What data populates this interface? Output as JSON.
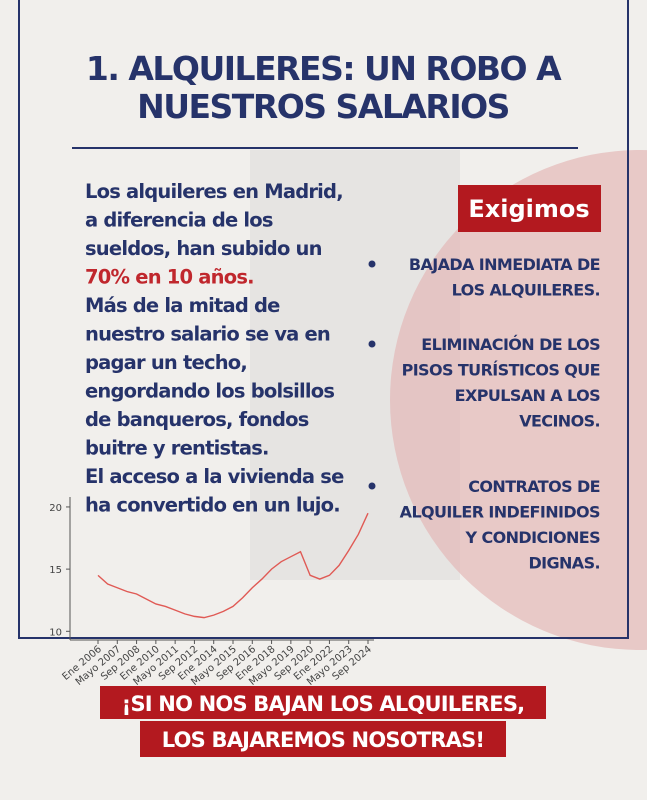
{
  "title": [
    "1. ALQUILERES: UN ROBO A",
    "NUESTROS SALARIOS"
  ],
  "body": [
    "Los alquileres en Madrid,",
    "a diferencia de los",
    "sueldos, han subido un",
    "70% en 10 años.",
    "Más de la mitad de",
    "nuestro salario se va en",
    "pagar un techo,",
    "engordando los bolsillos",
    "de banqueros, fondos",
    "buitre y rentistas.",
    "El acceso a la vivienda se",
    "ha convertido en un lujo."
  ],
  "demands_heading": "Exigimos",
  "demands": [
    [
      "BAJADA INMEDIATA DE",
      "LOS ALQUILERES."
    ],
    [
      "ELIMINACIÓN DE LOS",
      "PISOS TURÍSTICOS QUE",
      "EXPULSAN A LOS",
      "VECINOS."
    ],
    [
      "CONTRATOS DE",
      "ALQUILER INDEFINIDOS",
      "Y CONDICIONES",
      "DIGNAS."
    ]
  ],
  "slogan": [
    "¡SI NO NOS BAJAN LOS ALQUILERES,",
    "LOS BAJAREMOS NOSOTRAS!"
  ],
  "chart_data": {
    "type": "line",
    "categories": [
      "Ene 2006",
      null,
      "Mayo 2007",
      null,
      "Sep 2008",
      null,
      "Ene 2010",
      null,
      "Mayo 2011",
      null,
      "Sep 2012",
      null,
      "Ene 2014",
      null,
      "Mayo 2015",
      null,
      "Sep 2016",
      null,
      "Ene 2018",
      null,
      "Mayo 2019",
      null,
      "Sep 2020",
      null,
      "Ene 2022",
      null,
      "Mayo 2023",
      null,
      "Sep 2024"
    ],
    "values": [
      14.5,
      13.8,
      13.5,
      13.2,
      13,
      12.6,
      12.2,
      12,
      11.7,
      11.4,
      11.2,
      11.1,
      11.3,
      11.6,
      12,
      12.7,
      13.5,
      14.2,
      15,
      15.6,
      16,
      16.4,
      14.5,
      14.2,
      14.5,
      15.3,
      16.5,
      17.8,
      19.5
    ],
    "color": "#e05a55",
    "ylim": [
      9.3,
      20.8
    ],
    "yticks": [
      10,
      15,
      20
    ]
  }
}
